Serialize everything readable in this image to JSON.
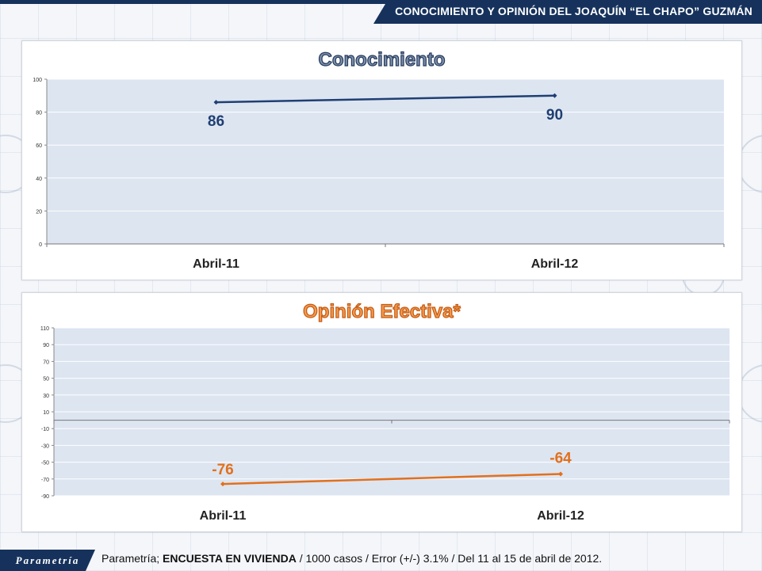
{
  "header": {
    "title": "CONOCIMIENTO Y OPINIÓN DEL JOAQUÍN “EL CHAPO” GUZMÁN"
  },
  "footer": {
    "logo": "Parametría",
    "source_prefix": "Parametría; ",
    "source_bold": "ENCUESTA EN VIVIENDA",
    "source_suffix": " / 1000 casos / Error (+/-) 3.1% / Del 11 al 15 de abril de 2012."
  },
  "colors": {
    "navy": "#16325c",
    "line_blue": "#1f3f73",
    "line_orange": "#e2701c",
    "plot_bg": "#dde5f1"
  },
  "chart_data": [
    {
      "type": "line",
      "title": "Conocimiento",
      "categories": [
        "Abril-11",
        "Abril-12"
      ],
      "values": [
        86,
        90
      ],
      "data_labels": [
        "86",
        "90"
      ],
      "ylim": [
        0,
        100
      ],
      "yticks": [
        0,
        20,
        40,
        60,
        80,
        100
      ],
      "grid": true
    },
    {
      "type": "line",
      "title": "Opinión Efectiva*",
      "categories": [
        "Abril-11",
        "Abril-12"
      ],
      "values": [
        -76,
        -64
      ],
      "data_labels": [
        "-76",
        "-64"
      ],
      "ylim": [
        -90,
        110
      ],
      "yticks": [
        110,
        90,
        70,
        50,
        30,
        10,
        -10,
        -30,
        -50,
        -70,
        -90
      ],
      "grid": true
    }
  ]
}
